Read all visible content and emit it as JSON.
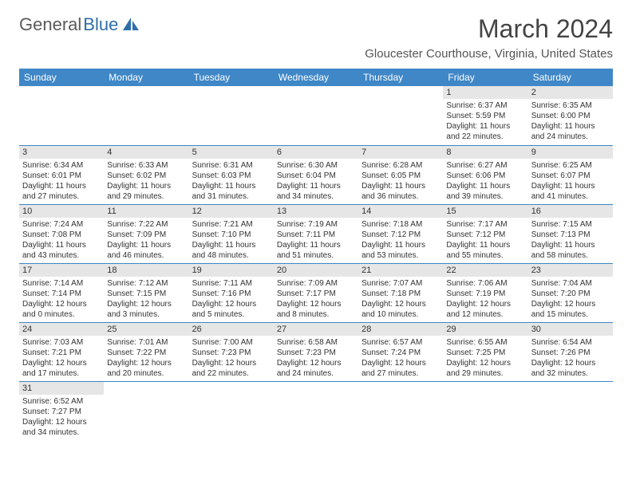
{
  "logo": {
    "part1": "General",
    "part2": "Blue"
  },
  "title": "March 2024",
  "location": "Gloucester Courthouse, Virginia, United States",
  "colors": {
    "header_bg": "#3f87c7",
    "header_fg": "#ffffff",
    "daynum_bg": "#e6e6e6",
    "border": "#3f87c7",
    "logo_gray": "#5a5a5a",
    "logo_blue": "#2f6ea8"
  },
  "weekdays": [
    "Sunday",
    "Monday",
    "Tuesday",
    "Wednesday",
    "Thursday",
    "Friday",
    "Saturday"
  ],
  "weeks": [
    [
      null,
      null,
      null,
      null,
      null,
      {
        "n": "1",
        "sunrise": "Sunrise: 6:37 AM",
        "sunset": "Sunset: 5:59 PM",
        "daylight": "Daylight: 11 hours and 22 minutes."
      },
      {
        "n": "2",
        "sunrise": "Sunrise: 6:35 AM",
        "sunset": "Sunset: 6:00 PM",
        "daylight": "Daylight: 11 hours and 24 minutes."
      }
    ],
    [
      {
        "n": "3",
        "sunrise": "Sunrise: 6:34 AM",
        "sunset": "Sunset: 6:01 PM",
        "daylight": "Daylight: 11 hours and 27 minutes."
      },
      {
        "n": "4",
        "sunrise": "Sunrise: 6:33 AM",
        "sunset": "Sunset: 6:02 PM",
        "daylight": "Daylight: 11 hours and 29 minutes."
      },
      {
        "n": "5",
        "sunrise": "Sunrise: 6:31 AM",
        "sunset": "Sunset: 6:03 PM",
        "daylight": "Daylight: 11 hours and 31 minutes."
      },
      {
        "n": "6",
        "sunrise": "Sunrise: 6:30 AM",
        "sunset": "Sunset: 6:04 PM",
        "daylight": "Daylight: 11 hours and 34 minutes."
      },
      {
        "n": "7",
        "sunrise": "Sunrise: 6:28 AM",
        "sunset": "Sunset: 6:05 PM",
        "daylight": "Daylight: 11 hours and 36 minutes."
      },
      {
        "n": "8",
        "sunrise": "Sunrise: 6:27 AM",
        "sunset": "Sunset: 6:06 PM",
        "daylight": "Daylight: 11 hours and 39 minutes."
      },
      {
        "n": "9",
        "sunrise": "Sunrise: 6:25 AM",
        "sunset": "Sunset: 6:07 PM",
        "daylight": "Daylight: 11 hours and 41 minutes."
      }
    ],
    [
      {
        "n": "10",
        "sunrise": "Sunrise: 7:24 AM",
        "sunset": "Sunset: 7:08 PM",
        "daylight": "Daylight: 11 hours and 43 minutes."
      },
      {
        "n": "11",
        "sunrise": "Sunrise: 7:22 AM",
        "sunset": "Sunset: 7:09 PM",
        "daylight": "Daylight: 11 hours and 46 minutes."
      },
      {
        "n": "12",
        "sunrise": "Sunrise: 7:21 AM",
        "sunset": "Sunset: 7:10 PM",
        "daylight": "Daylight: 11 hours and 48 minutes."
      },
      {
        "n": "13",
        "sunrise": "Sunrise: 7:19 AM",
        "sunset": "Sunset: 7:11 PM",
        "daylight": "Daylight: 11 hours and 51 minutes."
      },
      {
        "n": "14",
        "sunrise": "Sunrise: 7:18 AM",
        "sunset": "Sunset: 7:12 PM",
        "daylight": "Daylight: 11 hours and 53 minutes."
      },
      {
        "n": "15",
        "sunrise": "Sunrise: 7:17 AM",
        "sunset": "Sunset: 7:12 PM",
        "daylight": "Daylight: 11 hours and 55 minutes."
      },
      {
        "n": "16",
        "sunrise": "Sunrise: 7:15 AM",
        "sunset": "Sunset: 7:13 PM",
        "daylight": "Daylight: 11 hours and 58 minutes."
      }
    ],
    [
      {
        "n": "17",
        "sunrise": "Sunrise: 7:14 AM",
        "sunset": "Sunset: 7:14 PM",
        "daylight": "Daylight: 12 hours and 0 minutes."
      },
      {
        "n": "18",
        "sunrise": "Sunrise: 7:12 AM",
        "sunset": "Sunset: 7:15 PM",
        "daylight": "Daylight: 12 hours and 3 minutes."
      },
      {
        "n": "19",
        "sunrise": "Sunrise: 7:11 AM",
        "sunset": "Sunset: 7:16 PM",
        "daylight": "Daylight: 12 hours and 5 minutes."
      },
      {
        "n": "20",
        "sunrise": "Sunrise: 7:09 AM",
        "sunset": "Sunset: 7:17 PM",
        "daylight": "Daylight: 12 hours and 8 minutes."
      },
      {
        "n": "21",
        "sunrise": "Sunrise: 7:07 AM",
        "sunset": "Sunset: 7:18 PM",
        "daylight": "Daylight: 12 hours and 10 minutes."
      },
      {
        "n": "22",
        "sunrise": "Sunrise: 7:06 AM",
        "sunset": "Sunset: 7:19 PM",
        "daylight": "Daylight: 12 hours and 12 minutes."
      },
      {
        "n": "23",
        "sunrise": "Sunrise: 7:04 AM",
        "sunset": "Sunset: 7:20 PM",
        "daylight": "Daylight: 12 hours and 15 minutes."
      }
    ],
    [
      {
        "n": "24",
        "sunrise": "Sunrise: 7:03 AM",
        "sunset": "Sunset: 7:21 PM",
        "daylight": "Daylight: 12 hours and 17 minutes."
      },
      {
        "n": "25",
        "sunrise": "Sunrise: 7:01 AM",
        "sunset": "Sunset: 7:22 PM",
        "daylight": "Daylight: 12 hours and 20 minutes."
      },
      {
        "n": "26",
        "sunrise": "Sunrise: 7:00 AM",
        "sunset": "Sunset: 7:23 PM",
        "daylight": "Daylight: 12 hours and 22 minutes."
      },
      {
        "n": "27",
        "sunrise": "Sunrise: 6:58 AM",
        "sunset": "Sunset: 7:23 PM",
        "daylight": "Daylight: 12 hours and 24 minutes."
      },
      {
        "n": "28",
        "sunrise": "Sunrise: 6:57 AM",
        "sunset": "Sunset: 7:24 PM",
        "daylight": "Daylight: 12 hours and 27 minutes."
      },
      {
        "n": "29",
        "sunrise": "Sunrise: 6:55 AM",
        "sunset": "Sunset: 7:25 PM",
        "daylight": "Daylight: 12 hours and 29 minutes."
      },
      {
        "n": "30",
        "sunrise": "Sunrise: 6:54 AM",
        "sunset": "Sunset: 7:26 PM",
        "daylight": "Daylight: 12 hours and 32 minutes."
      }
    ],
    [
      {
        "n": "31",
        "sunrise": "Sunrise: 6:52 AM",
        "sunset": "Sunset: 7:27 PM",
        "daylight": "Daylight: 12 hours and 34 minutes."
      },
      null,
      null,
      null,
      null,
      null,
      null
    ]
  ]
}
